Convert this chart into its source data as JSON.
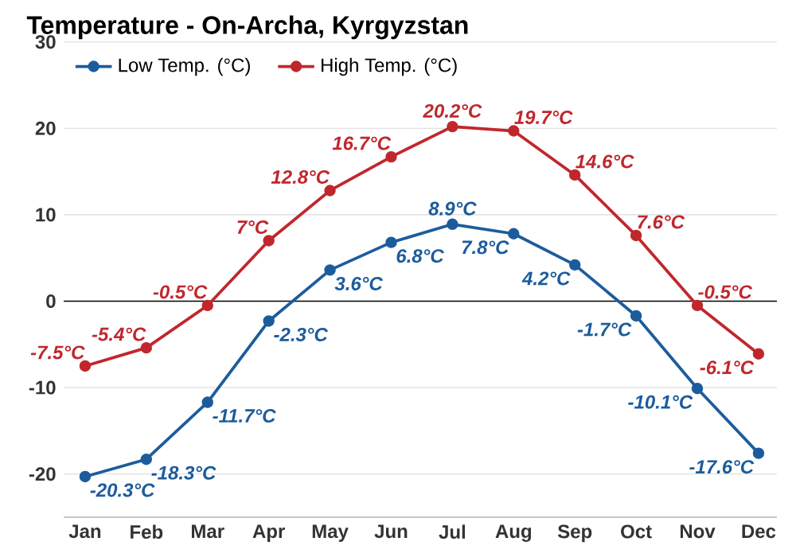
{
  "chart_data": {
    "type": "line",
    "title": "Temperature - On-Archa, Kyrgyzstan",
    "categories": [
      "Jan",
      "Feb",
      "Mar",
      "Apr",
      "May",
      "Jun",
      "Jul",
      "Aug",
      "Sep",
      "Oct",
      "Nov",
      "Dec"
    ],
    "series": [
      {
        "name": "Low Temp. (°C)",
        "color": "#1c5c9c",
        "values": [
          -20.3,
          -18.3,
          -11.7,
          -2.3,
          3.6,
          6.8,
          8.9,
          7.8,
          4.2,
          -1.7,
          -10.1,
          -17.6
        ],
        "value_labels": [
          "-20.3°C",
          "-18.3°C",
          "-11.7°C",
          "-2.3°C",
          "3.6°C",
          "6.8°C",
          "8.9°C",
          "7.8°C",
          "4.2°C",
          "-1.7°C",
          "-10.1°C",
          "-17.6°C"
        ]
      },
      {
        "name": "High Temp. (°C)",
        "color": "#c0272d",
        "values": [
          -7.5,
          -5.4,
          -0.5,
          7,
          12.8,
          16.7,
          20.2,
          19.7,
          14.6,
          7.6,
          -0.5,
          -6.1
        ],
        "value_labels": [
          "-7.5°C",
          "-5.4°C",
          "-0.5°C",
          "7°C",
          "12.8°C",
          "16.7°C",
          "20.2°C",
          "19.7°C",
          "14.6°C",
          "7.6°C",
          "-0.5°C",
          "-6.1°C"
        ]
      }
    ],
    "ylim": [
      -25,
      30
    ],
    "yticks": [
      -20,
      -10,
      0,
      10,
      20,
      30
    ],
    "grid": "y",
    "legend": "top left",
    "marker": "circle",
    "line_style": "solid",
    "ref_lines": [
      {
        "axis": "y",
        "value": 0,
        "color": "#000000"
      }
    ]
  }
}
